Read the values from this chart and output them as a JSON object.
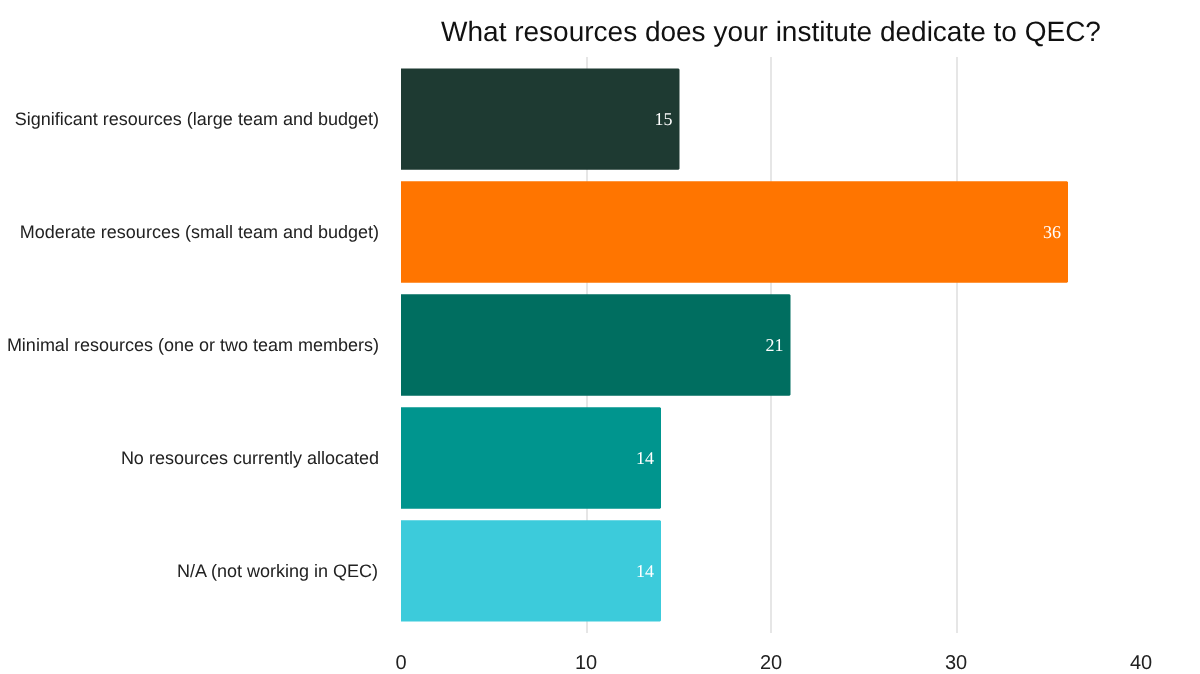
{
  "chart_data": {
    "type": "bar",
    "orientation": "horizontal",
    "title": "What resources does your institute dedicate to QEC?",
    "categories": [
      "Significant resources (large team and budget)",
      "Moderate resources (small team and budget)",
      "Minimal resources (one or two team members)",
      "No resources currently allocated",
      "N/A (not working in QEC)"
    ],
    "values": [
      15,
      36,
      21,
      14,
      14
    ],
    "colors": [
      "#1e3a32",
      "#ff7500",
      "#006e60",
      "#00958e",
      "#3ccbdb"
    ],
    "xlim": [
      0,
      40
    ],
    "xticks": [
      0,
      10,
      20,
      30,
      40
    ],
    "grid": "x",
    "data_labels": true
  }
}
